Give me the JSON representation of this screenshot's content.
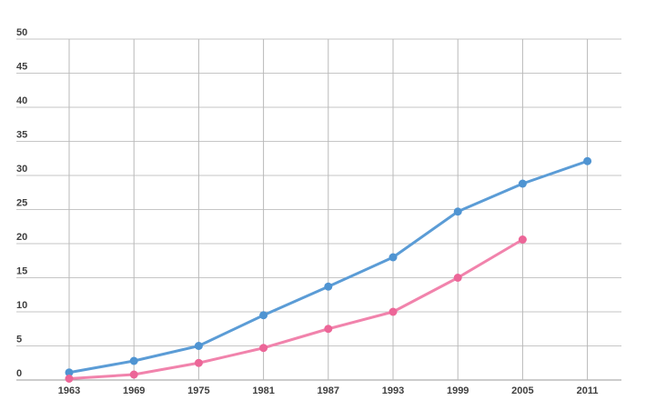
{
  "chart": {
    "title": "",
    "background_color": "#ffffff",
    "label_color": "#3f3f3f",
    "horizontal_grid_color": "#c6c6c6",
    "vertical_grid_color": "#b9b9b9",
    "axis_line_color": "#9a9a9a",
    "y_tick_labels": [
      "0",
      "5",
      "10",
      "15",
      "20",
      "25",
      "30",
      "35",
      "40",
      "45",
      "50"
    ],
    "x_tick_labels": [
      "1963",
      "1969",
      "1975",
      "1981",
      "1987",
      "1993",
      "1999",
      "2005",
      "2011"
    ]
  },
  "chart_data": {
    "type": "line",
    "x": [
      1963,
      1969,
      1975,
      1981,
      1987,
      1993,
      1999,
      2005,
      2011
    ],
    "series": [
      {
        "name": "blue-series",
        "line_color": "#5b9cd6",
        "marker_color": "#4f94d2",
        "values": [
          1.1,
          2.8,
          5,
          9.5,
          13.7,
          18,
          24.7,
          28.8,
          32.1
        ]
      },
      {
        "name": "pink-series",
        "line_color": "#f183ac",
        "marker_color": "#ec6698",
        "values": [
          0.2,
          0.8,
          2.5,
          4.7,
          7.5,
          10,
          15,
          20.6,
          null
        ]
      }
    ],
    "title": "",
    "xlabel": "",
    "ylabel": "",
    "ylim": [
      0,
      50
    ],
    "y_tick_step": 5,
    "grid": true,
    "legend_position": "none",
    "marker_style": "circle",
    "line_width": 3,
    "marker_radius": 4.5
  }
}
